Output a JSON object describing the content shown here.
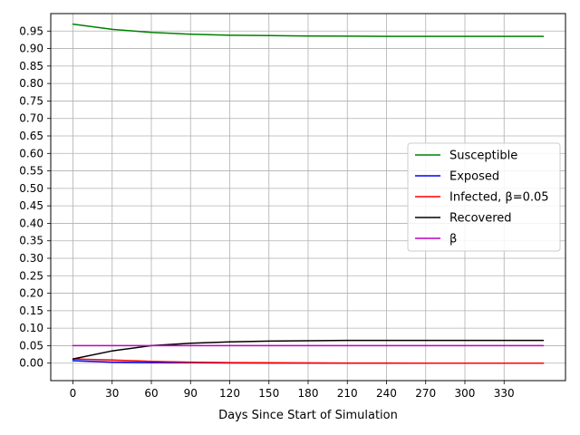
{
  "chart_data": {
    "type": "line",
    "title": "",
    "xlabel": "Days Since Start of Simulation",
    "ylabel": "",
    "xlim": [
      -17,
      377
    ],
    "ylim": [
      -0.05,
      1.0
    ],
    "grid": true,
    "legend_position": "center-right",
    "xticks": [
      0,
      30,
      60,
      90,
      120,
      150,
      180,
      210,
      240,
      270,
      300,
      330
    ],
    "yticks": [
      0.0,
      0.05,
      0.1,
      0.15,
      0.2,
      0.25,
      0.3,
      0.35,
      0.4,
      0.45,
      0.5,
      0.55,
      0.6,
      0.65,
      0.7,
      0.75,
      0.8,
      0.85,
      0.9,
      0.95
    ],
    "x": [
      0,
      30,
      60,
      90,
      120,
      150,
      180,
      210,
      240,
      270,
      300,
      330,
      360
    ],
    "series": [
      {
        "name": "Susceptible",
        "color": "#008000",
        "values": [
          0.97,
          0.955,
          0.946,
          0.941,
          0.938,
          0.937,
          0.936,
          0.9355,
          0.935,
          0.935,
          0.935,
          0.935,
          0.935
        ]
      },
      {
        "name": "Exposed",
        "color": "#0000ff",
        "values": [
          0.007,
          0.003,
          0.0015,
          0.001,
          0.0005,
          0.0003,
          0.0002,
          0.0001,
          0.0001,
          0.0001,
          0.0001,
          0.0001,
          0.0001
        ]
      },
      {
        "name": "Infected, β=0.05",
        "color": "#ff0000",
        "values": [
          0.012,
          0.009,
          0.005,
          0.003,
          0.0015,
          0.001,
          0.0005,
          0.0003,
          0.0002,
          0.0001,
          0.0001,
          0.0001,
          0.0001
        ]
      },
      {
        "name": "Recovered",
        "color": "#000000",
        "values": [
          0.012,
          0.035,
          0.05,
          0.057,
          0.061,
          0.063,
          0.064,
          0.065,
          0.065,
          0.065,
          0.065,
          0.065,
          0.065
        ]
      },
      {
        "name": "β",
        "color": "#bf00bf",
        "values": [
          0.05,
          0.05,
          0.05,
          0.05,
          0.05,
          0.05,
          0.05,
          0.05,
          0.05,
          0.05,
          0.05,
          0.05,
          0.05
        ]
      }
    ]
  }
}
